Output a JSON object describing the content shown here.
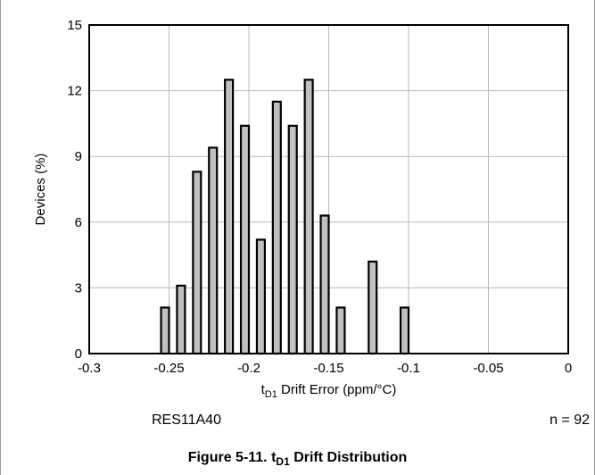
{
  "chart_data": {
    "type": "bar",
    "xlabel_main": "t",
    "xlabel_sub": "D1",
    "xlabel_rest": " Drift Error (ppm/°C)",
    "ylabel": "Devices (%)",
    "xlim": [
      -0.3,
      0
    ],
    "ylim": [
      0,
      15
    ],
    "xticks": [
      -0.3,
      -0.25,
      -0.2,
      -0.15,
      -0.1,
      -0.05,
      0
    ],
    "xtick_labels": [
      "-0.3",
      "-0.25",
      "-0.2",
      "-0.15",
      "-0.1",
      "-0.05",
      "0"
    ],
    "yticks": [
      0,
      3,
      6,
      9,
      12,
      15
    ],
    "ytick_labels": [
      "0",
      "3",
      "6",
      "9",
      "12",
      "15"
    ],
    "grid": true,
    "bin_width": 0.005,
    "bars": [
      {
        "x0": -0.255,
        "value": 2.1
      },
      {
        "x0": -0.245,
        "value": 3.1
      },
      {
        "x0": -0.235,
        "value": 8.3
      },
      {
        "x0": -0.225,
        "value": 9.4
      },
      {
        "x0": -0.215,
        "value": 12.5
      },
      {
        "x0": -0.205,
        "value": 10.4
      },
      {
        "x0": -0.195,
        "value": 5.2
      },
      {
        "x0": -0.185,
        "value": 11.5
      },
      {
        "x0": -0.175,
        "value": 10.4
      },
      {
        "x0": -0.165,
        "value": 12.5
      },
      {
        "x0": -0.155,
        "value": 6.3
      },
      {
        "x0": -0.145,
        "value": 2.1
      },
      {
        "x0": -0.125,
        "value": 4.2
      },
      {
        "x0": -0.105,
        "value": 2.1
      }
    ],
    "colors": {
      "bar_fill": "#c0c0c0",
      "bar_stroke": "#000000",
      "grid": "#b8b8b8"
    }
  },
  "notes": {
    "device": "RES11A40",
    "sample_size": "n = 92"
  },
  "caption": {
    "prefix": "Figure 5-11. t",
    "sub": "D1",
    "suffix": " Drift Distribution"
  }
}
